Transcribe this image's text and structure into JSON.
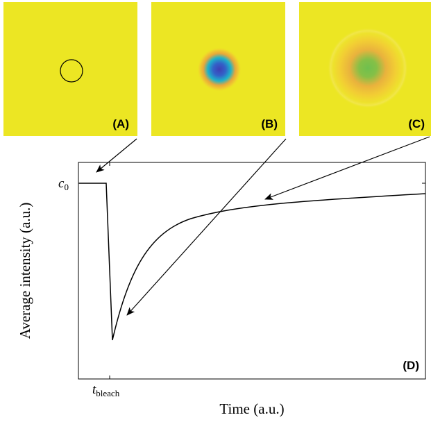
{
  "colors": {
    "background_field": "#ece623",
    "line": "#000000"
  },
  "panels": [
    {
      "label": "(A)",
      "content": "empty field with circular bleach region outline"
    },
    {
      "label": "(B)",
      "content": "dark blue bleached spot fading through cyan to yellow"
    },
    {
      "label": "(C)",
      "content": "green spot with orange halo, partially recovered"
    }
  ],
  "plot": {
    "label": "(D)",
    "xlabel": "Time (a.u.)",
    "ylabel": "Average intensity (a.u.)",
    "y_tick": {
      "main": "c",
      "sub": "0"
    },
    "x_tick": {
      "main": "t",
      "sub": "bleach"
    }
  }
}
